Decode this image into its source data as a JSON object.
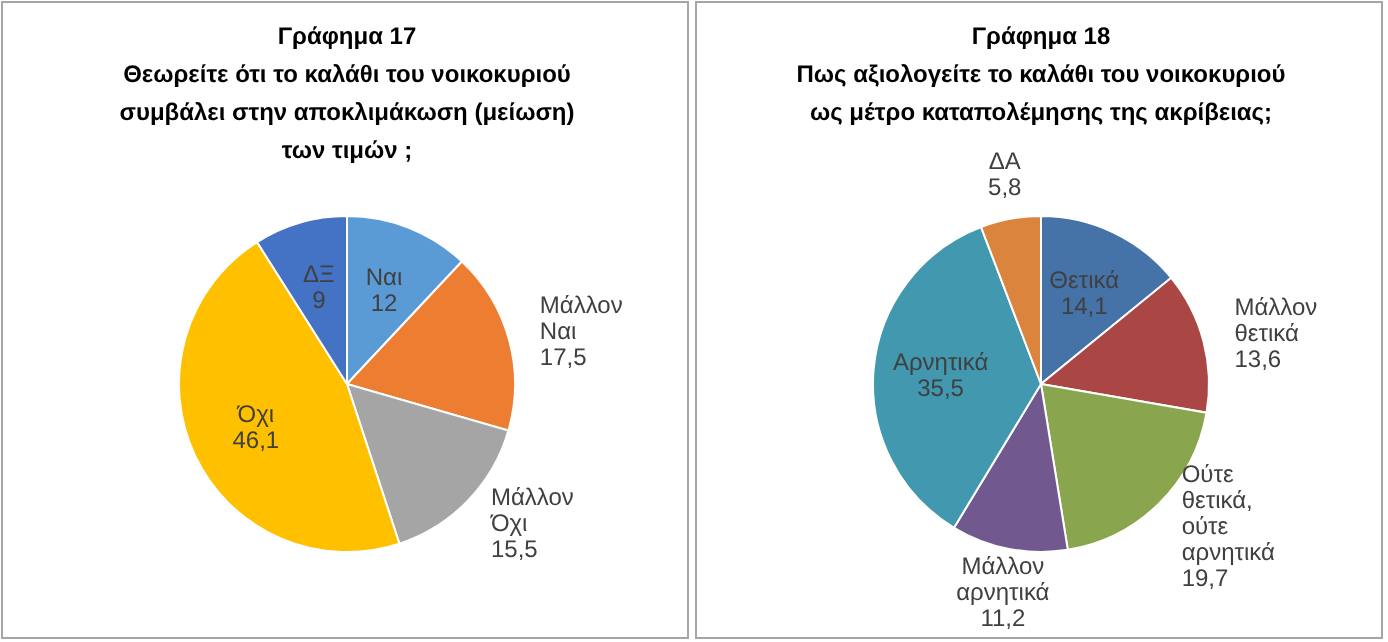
{
  "chart_data": [
    {
      "type": "pie",
      "title": "Γράφημα 17\nΘεωρείτε ότι το καλάθι του νοικοκυριού\nσυμβάλει στην αποκλιμάκωση (μείωση)\nτων τιμών ;",
      "categories": [
        "Ναι",
        "Μάλλον Ναι",
        "Μάλλον Όχι",
        "Όχι",
        "ΔΞ"
      ],
      "values": [
        12,
        17.5,
        15.5,
        46.1,
        9
      ],
      "colors": [
        "#5b9bd5",
        "#ed7d31",
        "#a5a5a5",
        "#ffc000",
        "#4472c4"
      ],
      "value_labels": [
        "12",
        "17,5",
        "15,5",
        "46,1",
        "9"
      ]
    },
    {
      "type": "pie",
      "title": "Γράφημα 18\nΠως αξιολογείτε το καλάθι του νοικοκυριού\nως μέτρο καταπολέμησης της ακρίβειας;",
      "categories": [
        "Θετικά",
        "Μάλλον θετικά",
        "Ούτε θετικά, ούτε αρνητικά",
        "Μάλλον αρνητικά",
        "Αρνητικά",
        "ΔΑ"
      ],
      "values": [
        14.1,
        13.6,
        19.7,
        11.2,
        35.5,
        5.8
      ],
      "colors": [
        "#4572a7",
        "#aa4643",
        "#89a54e",
        "#71588f",
        "#4198af",
        "#db843d"
      ],
      "value_labels": [
        "14,1",
        "13,6",
        "19,7",
        "11,2",
        "35,5",
        "5,8"
      ]
    }
  ]
}
